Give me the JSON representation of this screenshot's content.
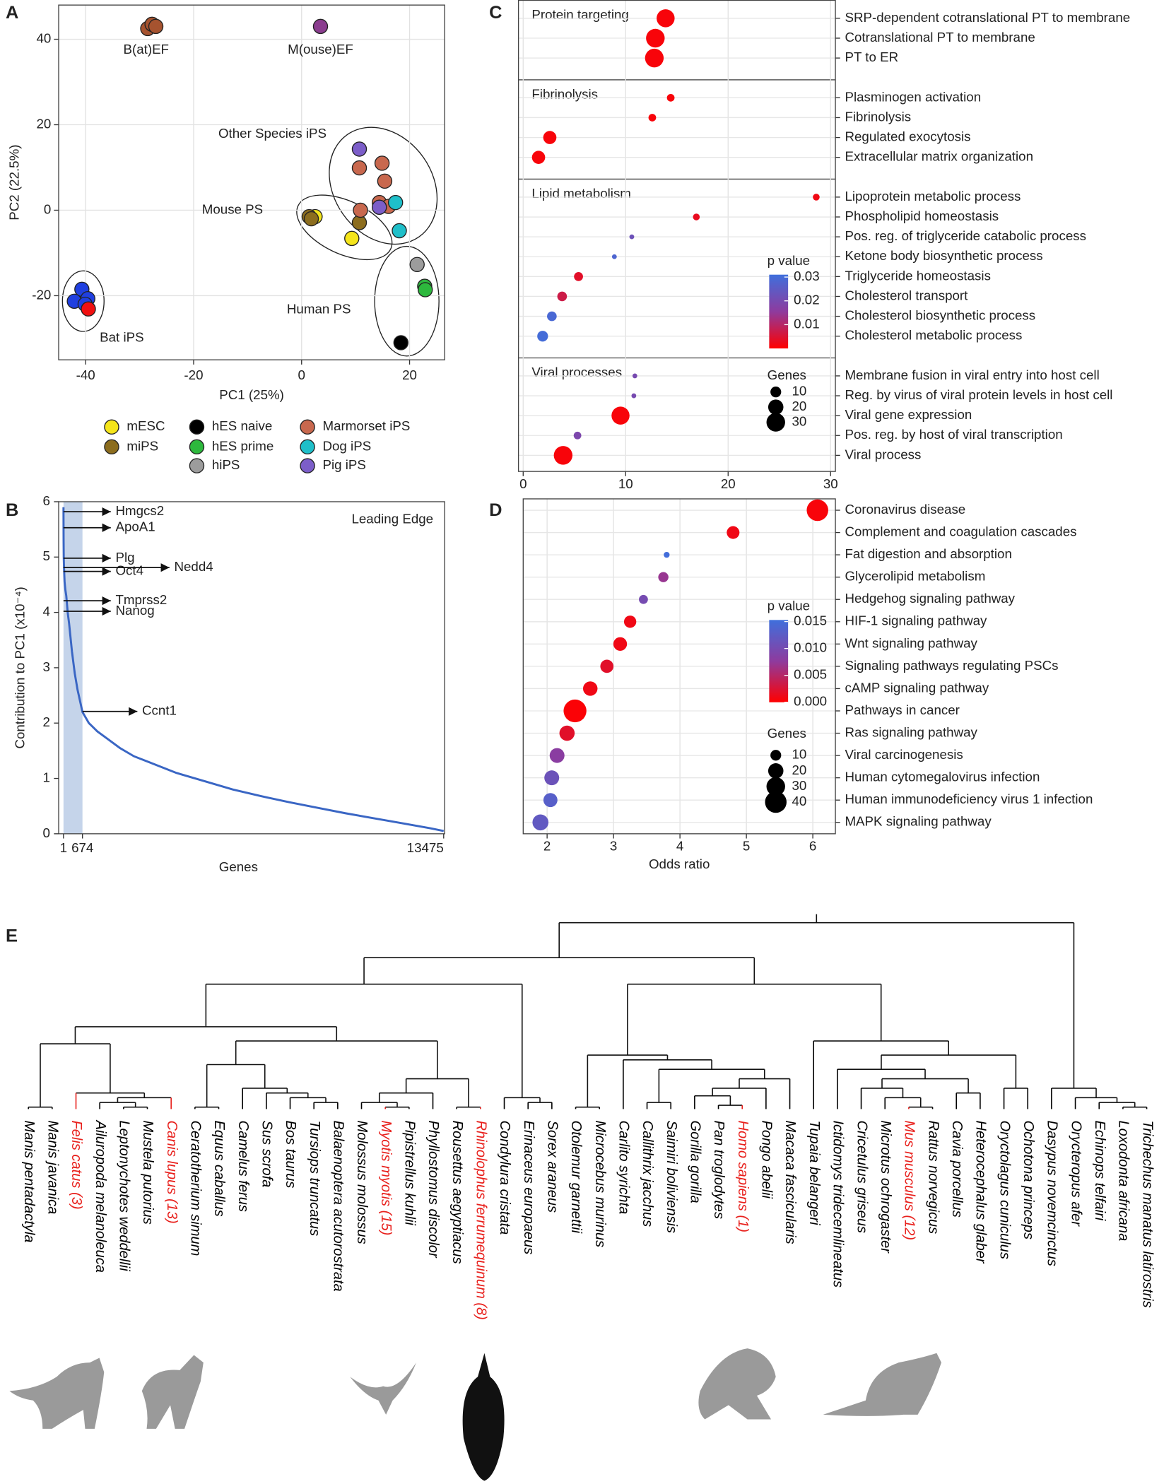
{
  "chart_data": [
    {
      "panel": "A",
      "type": "scatter",
      "xlabel": "PC1 (25%)",
      "ylabel": "PC2 (22.5%)",
      "xlim": [
        -45,
        26.5
      ],
      "ylim": [
        -35,
        48
      ],
      "xticks": [
        -40,
        -20,
        0,
        20
      ],
      "yticks": [
        -20,
        0,
        20,
        40
      ],
      "grid": true,
      "series": [
        {
          "name": "mESC",
          "color": "#f5e51b",
          "x": [
            2.5,
            9.3
          ],
          "values": [
            -1.5,
            -6.6
          ]
        },
        {
          "name": "miPS",
          "color": "#8c6d1e",
          "x": [
            1.4,
            1.8,
            10.7
          ],
          "values": [
            -1.5,
            -2.0,
            -2.9
          ]
        },
        {
          "name": "hES naive",
          "color": "#000000",
          "x": [
            18.4
          ],
          "values": [
            -31
          ]
        },
        {
          "name": "hES prime",
          "color": "#2db83d",
          "x": [
            22.8,
            22.9
          ],
          "values": [
            -17.8,
            -18.6
          ]
        },
        {
          "name": "hiPS",
          "color": "#9c9c9c",
          "x": [
            21.4
          ],
          "values": [
            -12.7
          ]
        },
        {
          "name": "Marmorset iPS",
          "color": "#c8684e",
          "x": [
            10.7,
            14.9,
            15.4,
            14.4,
            16.1,
            10.9
          ],
          "values": [
            9.9,
            11,
            6.8,
            1.8,
            0.9,
            0
          ]
        },
        {
          "name": "Dog iPS",
          "color": "#1fbfc9",
          "x": [
            17.4,
            18.1
          ],
          "values": [
            1.8,
            -4.8
          ]
        },
        {
          "name": "Pig iPS",
          "color": "#7c5ec9",
          "x": [
            10.7,
            14.4
          ],
          "values": [
            14.3,
            0.7
          ]
        },
        {
          "color": "#a6532f",
          "x": [
            -28.5,
            -27.7,
            -27
          ],
          "values": [
            42.5,
            43.5,
            43
          ]
        },
        {
          "color": "#8b3d8f",
          "x": [
            3.5
          ],
          "values": [
            43
          ]
        },
        {
          "color": "#1f3fe0",
          "x": [
            -40.7,
            -42.1,
            -39.6,
            -40.1
          ],
          "values": [
            -18.5,
            -21.3,
            -20.7,
            -22
          ]
        },
        {
          "color": "#f01010",
          "x": [
            -39.5
          ],
          "values": [
            -23.1
          ]
        }
      ],
      "annotations": [
        {
          "text": "B(at)EF",
          "x": -28.8,
          "y": 37.4
        },
        {
          "text": "M(ouse)EF",
          "x": 3.5,
          "y": 37.4
        },
        {
          "text": "Other Species iPS",
          "x": -5.4,
          "y": 17.8
        },
        {
          "text": "Mouse PS",
          "x": -12.8,
          "y": 0
        },
        {
          "text": "Human PS",
          "x": 3.2,
          "y": -23.3
        },
        {
          "text": "Bat iPS",
          "x": -33.3,
          "y": -29.9
        }
      ]
    },
    {
      "panel": "B",
      "type": "line",
      "title": "Leading Edge",
      "xlabel": "Genes",
      "ylabel": "Contribution to PC1 (x10⁻⁴)",
      "xlim": [
        -170,
        13510
      ],
      "ylim": [
        0,
        6
      ],
      "xticks": [
        1,
        674,
        13475
      ],
      "yticks": [
        0,
        1,
        2,
        3,
        4,
        5,
        6
      ],
      "color": "#3a66c4",
      "shade": {
        "range": [
          1,
          674
        ],
        "color": "#c5d4ea"
      },
      "x": [
        1,
        5,
        10,
        20,
        40,
        70,
        100,
        150,
        200,
        300,
        400,
        500,
        674,
        900,
        1200,
        1600,
        2000,
        2500,
        3000,
        4000,
        5000,
        6000,
        7000,
        8000,
        9000,
        10000,
        11000,
        12000,
        13000,
        13475
      ],
      "values": [
        5.9,
        5.3,
        5.0,
        4.8,
        4.55,
        4.4,
        4.3,
        4.0,
        3.8,
        3.3,
        2.9,
        2.6,
        2.2,
        2.0,
        1.85,
        1.7,
        1.55,
        1.4,
        1.3,
        1.1,
        0.95,
        0.8,
        0.68,
        0.57,
        0.47,
        0.37,
        0.28,
        0.19,
        0.1,
        0.05
      ],
      "annotations": [
        {
          "text": "Hmgcs2",
          "x": 1,
          "y": 5.82
        },
        {
          "text": "ApoA1",
          "x": 1,
          "y": 5.53
        },
        {
          "text": "Plg",
          "x": 1,
          "y": 4.98
        },
        {
          "text": "Oct4",
          "x": 1,
          "y": 4.74
        },
        {
          "text": "Nedd4",
          "x": 1,
          "y": 4.81
        },
        {
          "text": "Tmprss2",
          "x": 1,
          "y": 4.21
        },
        {
          "text": "Nanog",
          "x": 1,
          "y": 4.02
        },
        {
          "text": "Ccnt1",
          "x": 674,
          "y": 2.21
        }
      ]
    },
    {
      "panel": "C",
      "type": "dot",
      "xlim": [
        -0.46,
        30.47
      ],
      "xticks": [
        0,
        10,
        20,
        30
      ],
      "grid": true,
      "groups": [
        {
          "name": "Protein targeting",
          "categories": [
            "SRP-dependent cotranslational PT to membrane",
            "Cotranslational PT to membrane",
            "PT to ER"
          ],
          "values": [
            13.9,
            12.9,
            12.8
          ],
          "p_values": [
            0.001,
            0.001,
            0.001
          ],
          "genes": [
            28,
            30,
            30
          ]
        },
        {
          "name": "Fibrinolysis",
          "categories": [
            "Plasminogen activation",
            "Fibrinolysis",
            "Regulated exocytosis",
            "Extracellular matrix organization"
          ],
          "values": [
            14.4,
            12.6,
            2.6,
            1.5
          ],
          "p_values": [
            0.001,
            0.001,
            0.001,
            0.001
          ],
          "genes": [
            5,
            5,
            15,
            15
          ]
        },
        {
          "name": "Lipid metabolism",
          "categories": [
            "Lipoprotein metabolic process",
            "Phospholipid homeostasis",
            "Pos. reg. of triglyceride catabolic process",
            "Ketone body biosynthetic process",
            "Triglyceride homeostasis",
            "Cholesterol transport",
            "Cholesterol biosynthetic process",
            "Cholesterol metabolic process"
          ],
          "values": [
            28.6,
            16.9,
            10.6,
            8.9,
            5.4,
            3.8,
            2.8,
            1.9
          ],
          "p_values": [
            0.002,
            0.003,
            0.022,
            0.028,
            0.004,
            0.007,
            0.029,
            0.03
          ],
          "genes": [
            4,
            4,
            2,
            2,
            7,
            8,
            8,
            10
          ]
        },
        {
          "name": "Viral processes",
          "categories": [
            "Membrane fusion in viral entry into host cell",
            "Reg. by virus of viral protein levels in host cell",
            "Viral gene expression",
            "Pos. reg. by host of viral transcription",
            "Viral process"
          ],
          "values": [
            10.9,
            10.8,
            9.5,
            5.3,
            3.9
          ],
          "p_values": [
            0.02,
            0.02,
            0.001,
            0.019,
            0.001
          ],
          "genes": [
            2,
            2,
            28,
            5,
            30
          ]
        }
      ],
      "colorbar": {
        "title": "p value",
        "lim": [
          0,
          0.031
        ],
        "ticks": [
          0.01,
          0.02,
          0.03
        ],
        "colors": [
          "#ff0000",
          "#8e3b9e",
          "#3f6fdc"
        ]
      },
      "size_legend": {
        "title": "Genes",
        "ticks": [
          10,
          20,
          30
        ]
      }
    },
    {
      "panel": "D",
      "type": "dot",
      "xlabel": "Odds ratio",
      "xlim": [
        1.64,
        6.34
      ],
      "xticks": [
        2,
        3,
        4,
        5,
        6
      ],
      "grid": true,
      "categories": [
        "Coronavirus disease",
        "Complement and coagulation cascades",
        "Fat digestion and absorption",
        "Glycerolipid metabolism",
        "Hedgehog signaling pathway",
        "HIF-1 signaling pathway",
        "Wnt signaling pathway",
        "Signaling pathways regulating PSCs",
        "cAMP signaling pathway",
        "Pathways in cancer",
        "Ras signaling pathway",
        "Viral carcinogenesis",
        "Human cytomegalovirus infection",
        "Human immunodeficiency virus 1 infection",
        "MAPK signaling pathway"
      ],
      "values": [
        6.07,
        4.8,
        3.8,
        3.75,
        3.45,
        3.25,
        3.1,
        2.9,
        2.65,
        2.42,
        2.3,
        2.15,
        2.07,
        2.05,
        1.9
      ],
      "p_values": [
        0.0005,
        0.001,
        0.015,
        0.007,
        0.01,
        0.001,
        0.001,
        0.002,
        0.001,
        0.0003,
        0.002,
        0.008,
        0.011,
        0.013,
        0.012
      ],
      "genes": [
        40,
        14,
        3,
        9,
        7,
        13,
        16,
        15,
        18,
        45,
        20,
        19,
        19,
        17,
        22
      ],
      "colorbar": {
        "title": "p value",
        "lim": [
          0,
          0.0153
        ],
        "ticks": [
          {
            "value": 0,
            "label": "0.000"
          },
          {
            "value": 0.005,
            "label": "0.005"
          },
          {
            "value": 0.01,
            "label": "0.010"
          },
          {
            "value": 0.015,
            "label": "0.015"
          }
        ],
        "colors": [
          "#ff0000",
          "#8e3b9e",
          "#3f6fdc"
        ]
      },
      "size_legend": {
        "title": "Genes",
        "ticks": [
          10,
          20,
          30,
          40
        ]
      }
    }
  ],
  "dendrogram": {
    "panel": "E",
    "leaves": [
      {
        "label": "Manis pentadactyla",
        "color": "#000000"
      },
      {
        "label": "Manis javanica",
        "color": "#000000"
      },
      {
        "label": "Felis catus (3)",
        "color": "#e8201c"
      },
      {
        "label": "Ailuropoda melanoleuca",
        "color": "#000000"
      },
      {
        "label": "Leptonychotes weddellii",
        "color": "#000000"
      },
      {
        "label": "Mustela putorius",
        "color": "#000000"
      },
      {
        "label": "Canis lupus (13)",
        "color": "#e8201c"
      },
      {
        "label": "Ceratotherium simum",
        "color": "#000000"
      },
      {
        "label": "Equus caballus",
        "color": "#000000"
      },
      {
        "label": "Camelus ferus",
        "color": "#000000"
      },
      {
        "label": "Sus scrofa",
        "color": "#000000"
      },
      {
        "label": "Bos taurus",
        "color": "#000000"
      },
      {
        "label": "Tursiops truncatus",
        "color": "#000000"
      },
      {
        "label": "Balaenoptera acutorostrata",
        "color": "#000000"
      },
      {
        "label": "Molossus molossus",
        "color": "#000000"
      },
      {
        "label": "Myotis myotis (15)",
        "color": "#e8201c"
      },
      {
        "label": "Pipistrellus kuhlii",
        "color": "#000000"
      },
      {
        "label": "Phyllostomus discolor",
        "color": "#000000"
      },
      {
        "label": "Rousettus aegyptiacus",
        "color": "#000000"
      },
      {
        "label": "Rhinolophus ferrumequinum (8)",
        "color": "#e8201c"
      },
      {
        "label": "Condylura cristata",
        "color": "#000000"
      },
      {
        "label": "Erinaceus europaeus",
        "color": "#000000"
      },
      {
        "label": "Sorex araneus",
        "color": "#000000"
      },
      {
        "label": "Otolemur garnettii",
        "color": "#000000"
      },
      {
        "label": "Microcebus murinus",
        "color": "#000000"
      },
      {
        "label": "Carlito syrichta",
        "color": "#000000"
      },
      {
        "label": "Callithrix jacchus",
        "color": "#000000"
      },
      {
        "label": "Saimiri boliviensis",
        "color": "#000000"
      },
      {
        "label": "Gorilla gorilla",
        "color": "#000000"
      },
      {
        "label": "Pan troglodytes",
        "color": "#000000"
      },
      {
        "label": "Homo sapiens (1)",
        "color": "#e8201c"
      },
      {
        "label": "Pongo abelii",
        "color": "#000000"
      },
      {
        "label": "Macaca fascicularis",
        "color": "#000000"
      },
      {
        "label": "Tupaia belangeri",
        "color": "#000000"
      },
      {
        "label": "Ictidomys tridecemlineatus",
        "color": "#000000"
      },
      {
        "label": "Cricetulus griseus",
        "color": "#000000"
      },
      {
        "label": "Microtus ochrogaster",
        "color": "#000000"
      },
      {
        "label": "Mus musculus (12)",
        "color": "#e8201c"
      },
      {
        "label": "Rattus norvegicus",
        "color": "#000000"
      },
      {
        "label": "Cavia porcellus",
        "color": "#000000"
      },
      {
        "label": "Heterocephalus glaber",
        "color": "#000000"
      },
      {
        "label": "Oryctolagus cuniculus",
        "color": "#000000"
      },
      {
        "label": "Ochotona princeps",
        "color": "#000000"
      },
      {
        "label": "Dasypus novemcinctus",
        "color": "#000000"
      },
      {
        "label": "Orycteropus afer",
        "color": "#000000"
      },
      {
        "label": "Echinops telfairi",
        "color": "#000000"
      },
      {
        "label": "Loxodonta africana",
        "color": "#000000"
      },
      {
        "label": "Trichechus manatus latirostris",
        "color": "#000000"
      }
    ]
  }
}
